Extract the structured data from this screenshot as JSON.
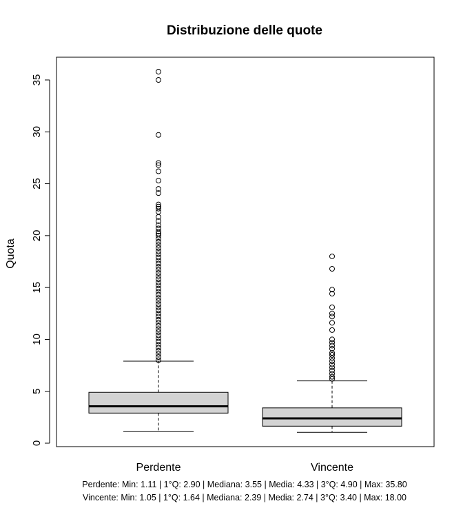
{
  "chart_data": {
    "type": "boxplot",
    "title": "Distribuzione delle quote",
    "xlabel": "",
    "ylabel": "Quota",
    "ylim": [
      0,
      37
    ],
    "yticks": [
      0,
      5,
      10,
      15,
      20,
      25,
      30,
      35
    ],
    "grid": false,
    "box_color": "#d3d3d3",
    "categories": [
      "Perdente",
      "Vincente"
    ],
    "boxes": [
      {
        "name": "Perdente",
        "whisker_low": 1.11,
        "q1": 2.9,
        "median": 3.55,
        "q3": 4.9,
        "whisker_high": 7.9,
        "outliers": [
          35.8,
          35.0,
          29.7,
          27.0,
          26.8,
          26.2,
          25.3,
          24.5,
          24.1,
          23.0,
          22.8,
          22.6,
          22.3,
          21.8,
          21.4,
          21.0,
          20.7,
          20.4,
          20.2,
          20.0,
          19.7,
          19.4,
          19.1,
          18.8,
          18.5,
          18.2,
          17.9,
          17.6,
          17.3,
          17.0,
          16.7,
          16.4,
          16.1,
          15.8,
          15.5,
          15.2,
          14.9,
          14.6,
          14.3,
          14.0,
          13.7,
          13.4,
          13.1,
          12.8,
          12.5,
          12.2,
          11.9,
          11.6,
          11.3,
          11.0,
          10.7,
          10.4,
          10.1,
          9.8,
          9.5,
          9.2,
          8.9,
          8.6,
          8.3,
          8.0
        ]
      },
      {
        "name": "Vincente",
        "whisker_low": 1.05,
        "q1": 1.64,
        "median": 2.39,
        "q3": 3.4,
        "whisker_high": 6.0,
        "outliers": [
          18.0,
          16.8,
          14.8,
          14.4,
          13.1,
          12.5,
          12.2,
          11.6,
          10.9,
          10.0,
          9.7,
          9.4,
          9.1,
          8.7,
          8.5,
          8.2,
          7.9,
          7.6,
          7.3,
          7.0,
          6.7,
          6.4,
          6.2
        ]
      }
    ],
    "annotations": [
      "Perdente: Min: 1.11 | 1°Q: 2.90 | Mediana: 3.55 | Media: 4.33 | 3°Q: 4.90 | Max: 35.80",
      "Vincente: Min: 1.05 | 1°Q: 1.64 | Mediana: 2.39 | Media: 2.74 | 3°Q: 3.40 | Max: 18.00"
    ]
  }
}
